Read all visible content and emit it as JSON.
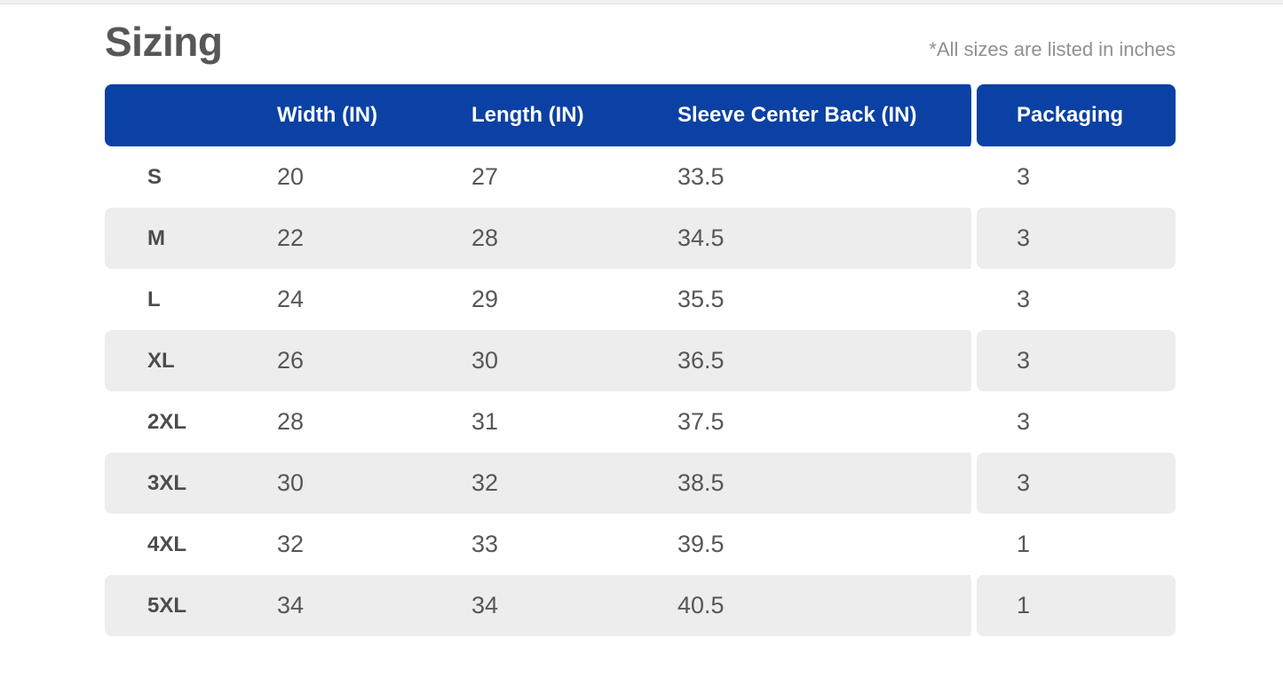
{
  "header": {
    "title": "Sizing",
    "note": "*All sizes are listed in inches"
  },
  "table": {
    "columns": [
      {
        "label": ""
      },
      {
        "label": "Width (IN)"
      },
      {
        "label": "Length (IN)"
      },
      {
        "label": "Sleeve Center Back (IN)"
      },
      {
        "label": "Packaging"
      }
    ],
    "rows": [
      {
        "size": "S",
        "width": "20",
        "length": "27",
        "sleeve": "33.5",
        "packaging": "3"
      },
      {
        "size": "M",
        "width": "22",
        "length": "28",
        "sleeve": "34.5",
        "packaging": "3"
      },
      {
        "size": "L",
        "width": "24",
        "length": "29",
        "sleeve": "35.5",
        "packaging": "3"
      },
      {
        "size": "XL",
        "width": "26",
        "length": "30",
        "sleeve": "36.5",
        "packaging": "3"
      },
      {
        "size": "2XL",
        "width": "28",
        "length": "31",
        "sleeve": "37.5",
        "packaging": "3"
      },
      {
        "size": "3XL",
        "width": "30",
        "length": "32",
        "sleeve": "38.5",
        "packaging": "3"
      },
      {
        "size": "4XL",
        "width": "32",
        "length": "33",
        "sleeve": "39.5",
        "packaging": "1"
      },
      {
        "size": "5XL",
        "width": "34",
        "length": "34",
        "sleeve": "40.5",
        "packaging": "1"
      }
    ]
  },
  "colors": {
    "header_bg": "#0b41a4",
    "header_text": "#ffffff",
    "row_alt_bg": "#ededed",
    "title_text": "#57575a",
    "label_text": "#4c4c4f",
    "cell_text": "#575759",
    "note_text": "#909093"
  }
}
